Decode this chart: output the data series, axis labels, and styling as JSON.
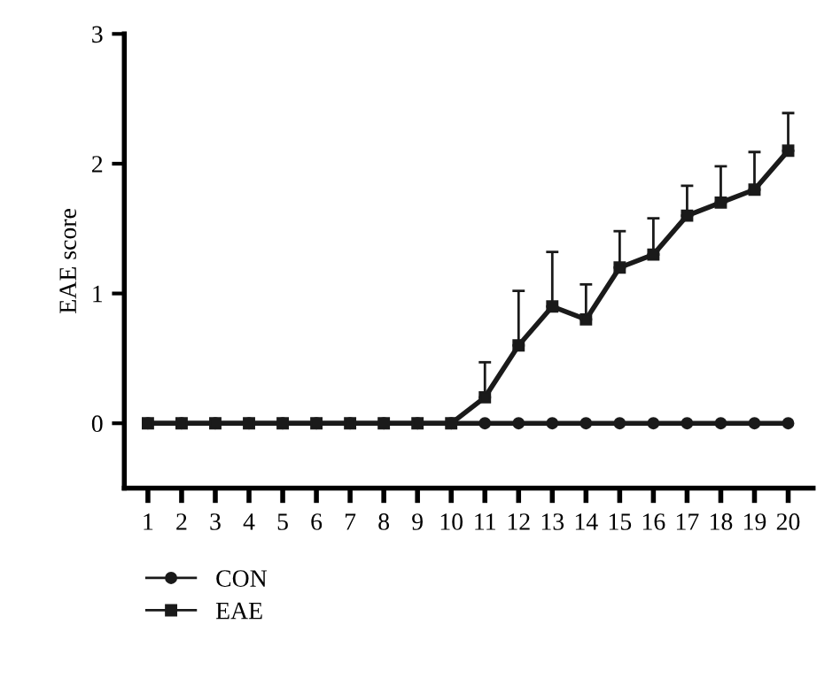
{
  "chart_data": {
    "type": "line",
    "ylabel": "EAE score",
    "categories": [
      "1",
      "2",
      "3",
      "4",
      "5",
      "6",
      "7",
      "8",
      "9",
      "10",
      "11",
      "12",
      "13",
      "14",
      "15",
      "16",
      "17",
      "18",
      "19",
      "20"
    ],
    "series": [
      {
        "name": "CON",
        "color": "#1a1a1a",
        "marker": "circle",
        "values": [
          0,
          0,
          0,
          0,
          0,
          0,
          0,
          0,
          0,
          0,
          0,
          0,
          0,
          0,
          0,
          0,
          0,
          0,
          0,
          0
        ]
      },
      {
        "name": "EAE",
        "color": "#1a1a1a",
        "marker": "square",
        "values": [
          0,
          0,
          0,
          0,
          0,
          0,
          0,
          0,
          0,
          0,
          0.2,
          0.6,
          0.9,
          0.8,
          1.2,
          1.3,
          1.6,
          1.7,
          1.8,
          2.1
        ],
        "errors": [
          null,
          null,
          null,
          null,
          null,
          null,
          null,
          null,
          null,
          null,
          [
            0.2,
            0.47
          ],
          [
            0.6,
            1.02
          ],
          [
            0.9,
            1.32
          ],
          [
            0.8,
            1.07
          ],
          [
            1.2,
            1.48
          ],
          [
            1.3,
            1.58
          ],
          [
            1.6,
            1.83
          ],
          [
            1.7,
            1.98
          ],
          [
            1.8,
            2.09
          ],
          [
            2.1,
            2.39
          ]
        ]
      }
    ],
    "ylim": [
      -0.5,
      3
    ],
    "yticks": [
      0,
      1,
      2,
      3
    ],
    "grid": false,
    "legend": "bottom left",
    "line_style": "solid"
  }
}
